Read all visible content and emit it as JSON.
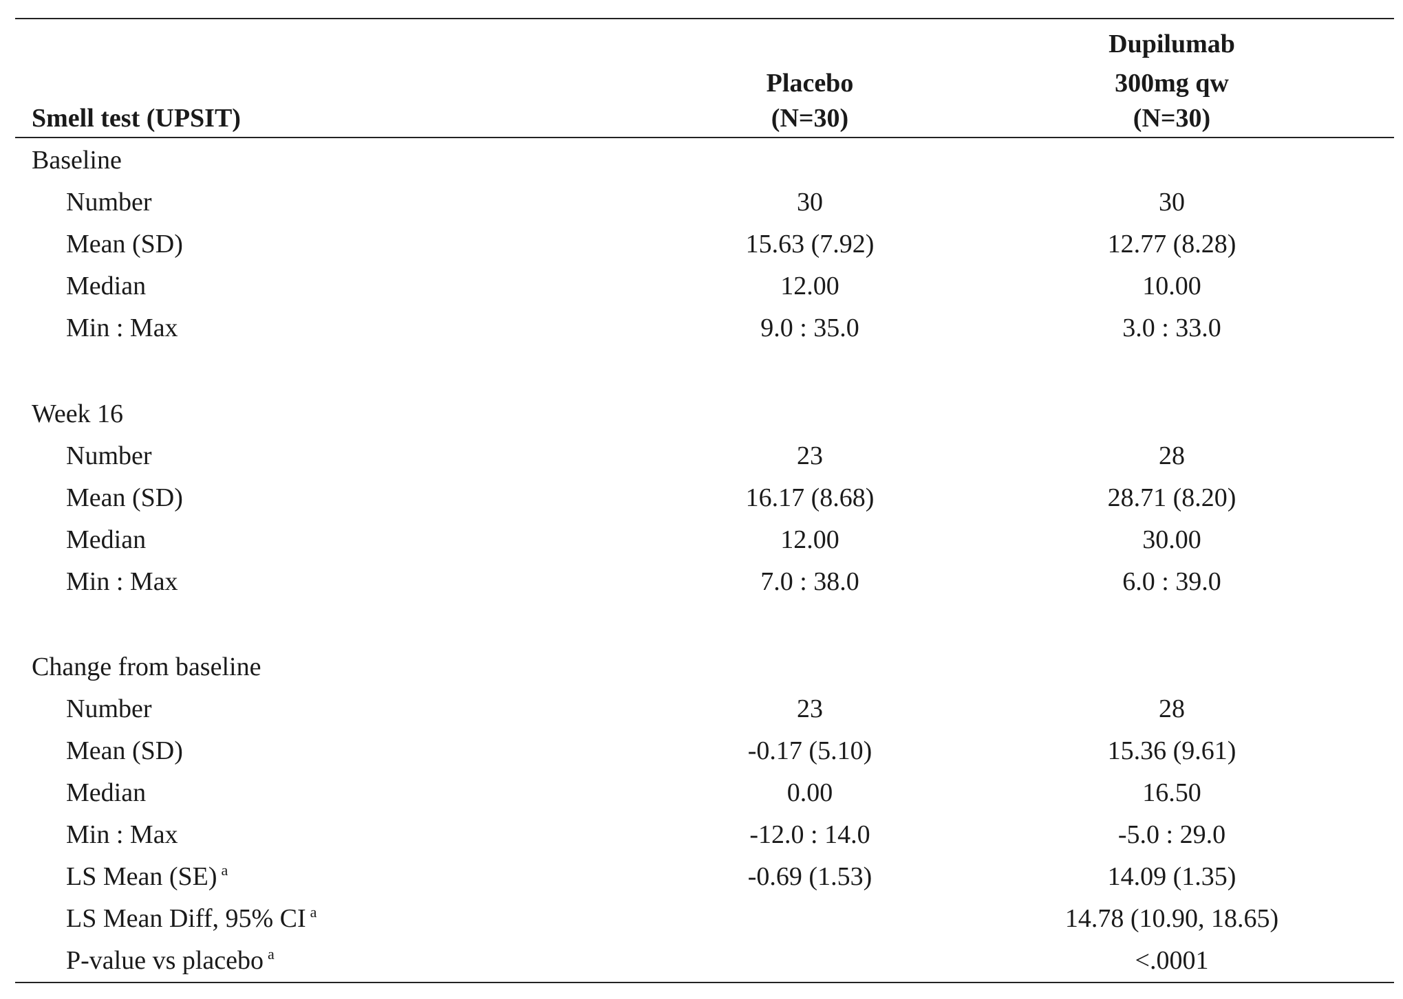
{
  "header": {
    "row_label": "Smell test (UPSIT)",
    "placebo_lines": [
      "Placebo",
      "(N=30)"
    ],
    "dupilumab_lines": [
      "Dupilumab",
      "300mg qw",
      "(N=30)"
    ]
  },
  "sections": [
    {
      "title": "Baseline",
      "rows": [
        {
          "label": "Number",
          "sup": "",
          "placebo": "30",
          "dupilumab": "30"
        },
        {
          "label": "Mean (SD)",
          "sup": "",
          "placebo": "15.63 (7.92)",
          "dupilumab": "12.77 (8.28)"
        },
        {
          "label": "Median",
          "sup": "",
          "placebo": "12.00",
          "dupilumab": "10.00"
        },
        {
          "label": "Min : Max",
          "sup": "",
          "placebo": "9.0 : 35.0",
          "dupilumab": "3.0 : 33.0"
        }
      ]
    },
    {
      "title": "Week 16",
      "rows": [
        {
          "label": "Number",
          "sup": "",
          "placebo": "23",
          "dupilumab": "28"
        },
        {
          "label": "Mean (SD)",
          "sup": "",
          "placebo": "16.17 (8.68)",
          "dupilumab": "28.71 (8.20)"
        },
        {
          "label": "Median",
          "sup": "",
          "placebo": "12.00",
          "dupilumab": "30.00"
        },
        {
          "label": "Min : Max",
          "sup": "",
          "placebo": "7.0 : 38.0",
          "dupilumab": "6.0 : 39.0"
        }
      ]
    },
    {
      "title": "Change from baseline",
      "rows": [
        {
          "label": "Number",
          "sup": "",
          "placebo": "23",
          "dupilumab": "28"
        },
        {
          "label": "Mean (SD)",
          "sup": "",
          "placebo": "-0.17 (5.10)",
          "dupilumab": "15.36 (9.61)"
        },
        {
          "label": "Median",
          "sup": "",
          "placebo": "0.00",
          "dupilumab": "16.50"
        },
        {
          "label": "Min : Max",
          "sup": "",
          "placebo": "-12.0 : 14.0",
          "dupilumab": "-5.0 : 29.0"
        },
        {
          "label": "LS Mean (SE)",
          "sup": "a",
          "placebo": "-0.69 (1.53)",
          "dupilumab": "14.09 (1.35)"
        },
        {
          "label": "LS Mean Diff, 95% CI",
          "sup": "a",
          "placebo": "",
          "dupilumab": "14.78 (10.90, 18.65)"
        },
        {
          "label": "P-value vs placebo",
          "sup": "a",
          "placebo": "",
          "dupilumab": "<.0001"
        }
      ]
    }
  ]
}
